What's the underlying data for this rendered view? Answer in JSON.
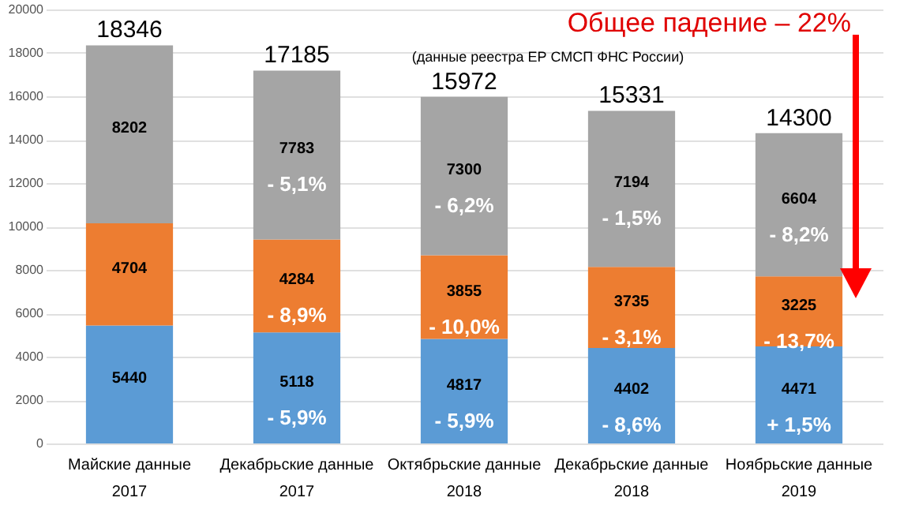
{
  "chart_data": {
    "type": "bar",
    "stacked": true,
    "title": "Общее падение – 22%",
    "categories": [
      "Майские данные 2017",
      "Декабрьские данные 2017",
      "Октябрьские данные 2018",
      "Декабрьские данные 2018",
      "Ноябрьские данные 2019"
    ],
    "series": [
      {
        "color": "#5b9bd5",
        "values": [
          5440,
          5118,
          4817,
          4402,
          4471
        ]
      },
      {
        "color": "#ed7d31",
        "values": [
          4704,
          4284,
          3855,
          3735,
          3225
        ]
      },
      {
        "color": "#a5a5a5",
        "values": [
          8202,
          7783,
          7300,
          7194,
          6604
        ]
      }
    ],
    "data_labels": true,
    "totals": [
      "18346",
      "17185",
      "15972",
      "15331",
      "14300"
    ],
    "ylim": [
      0,
      20000
    ],
    "yticks": [
      0,
      2000,
      4000,
      6000,
      8000,
      10000,
      12000,
      14000,
      16000,
      18000,
      20000
    ],
    "grid": "y",
    "annotations": [
      "(данные реестра ЕР СМСП ФНС России)",
      "- 5,9%",
      "- 5,9%",
      "- 8,6%",
      "+ 1,5%",
      "- 8,9%",
      "- 10,0%",
      "- 3,1%",
      "- 13,7%",
      "- 5,1%",
      "- 6,2%",
      "- 1,5%",
      "- 8,2%"
    ]
  }
}
